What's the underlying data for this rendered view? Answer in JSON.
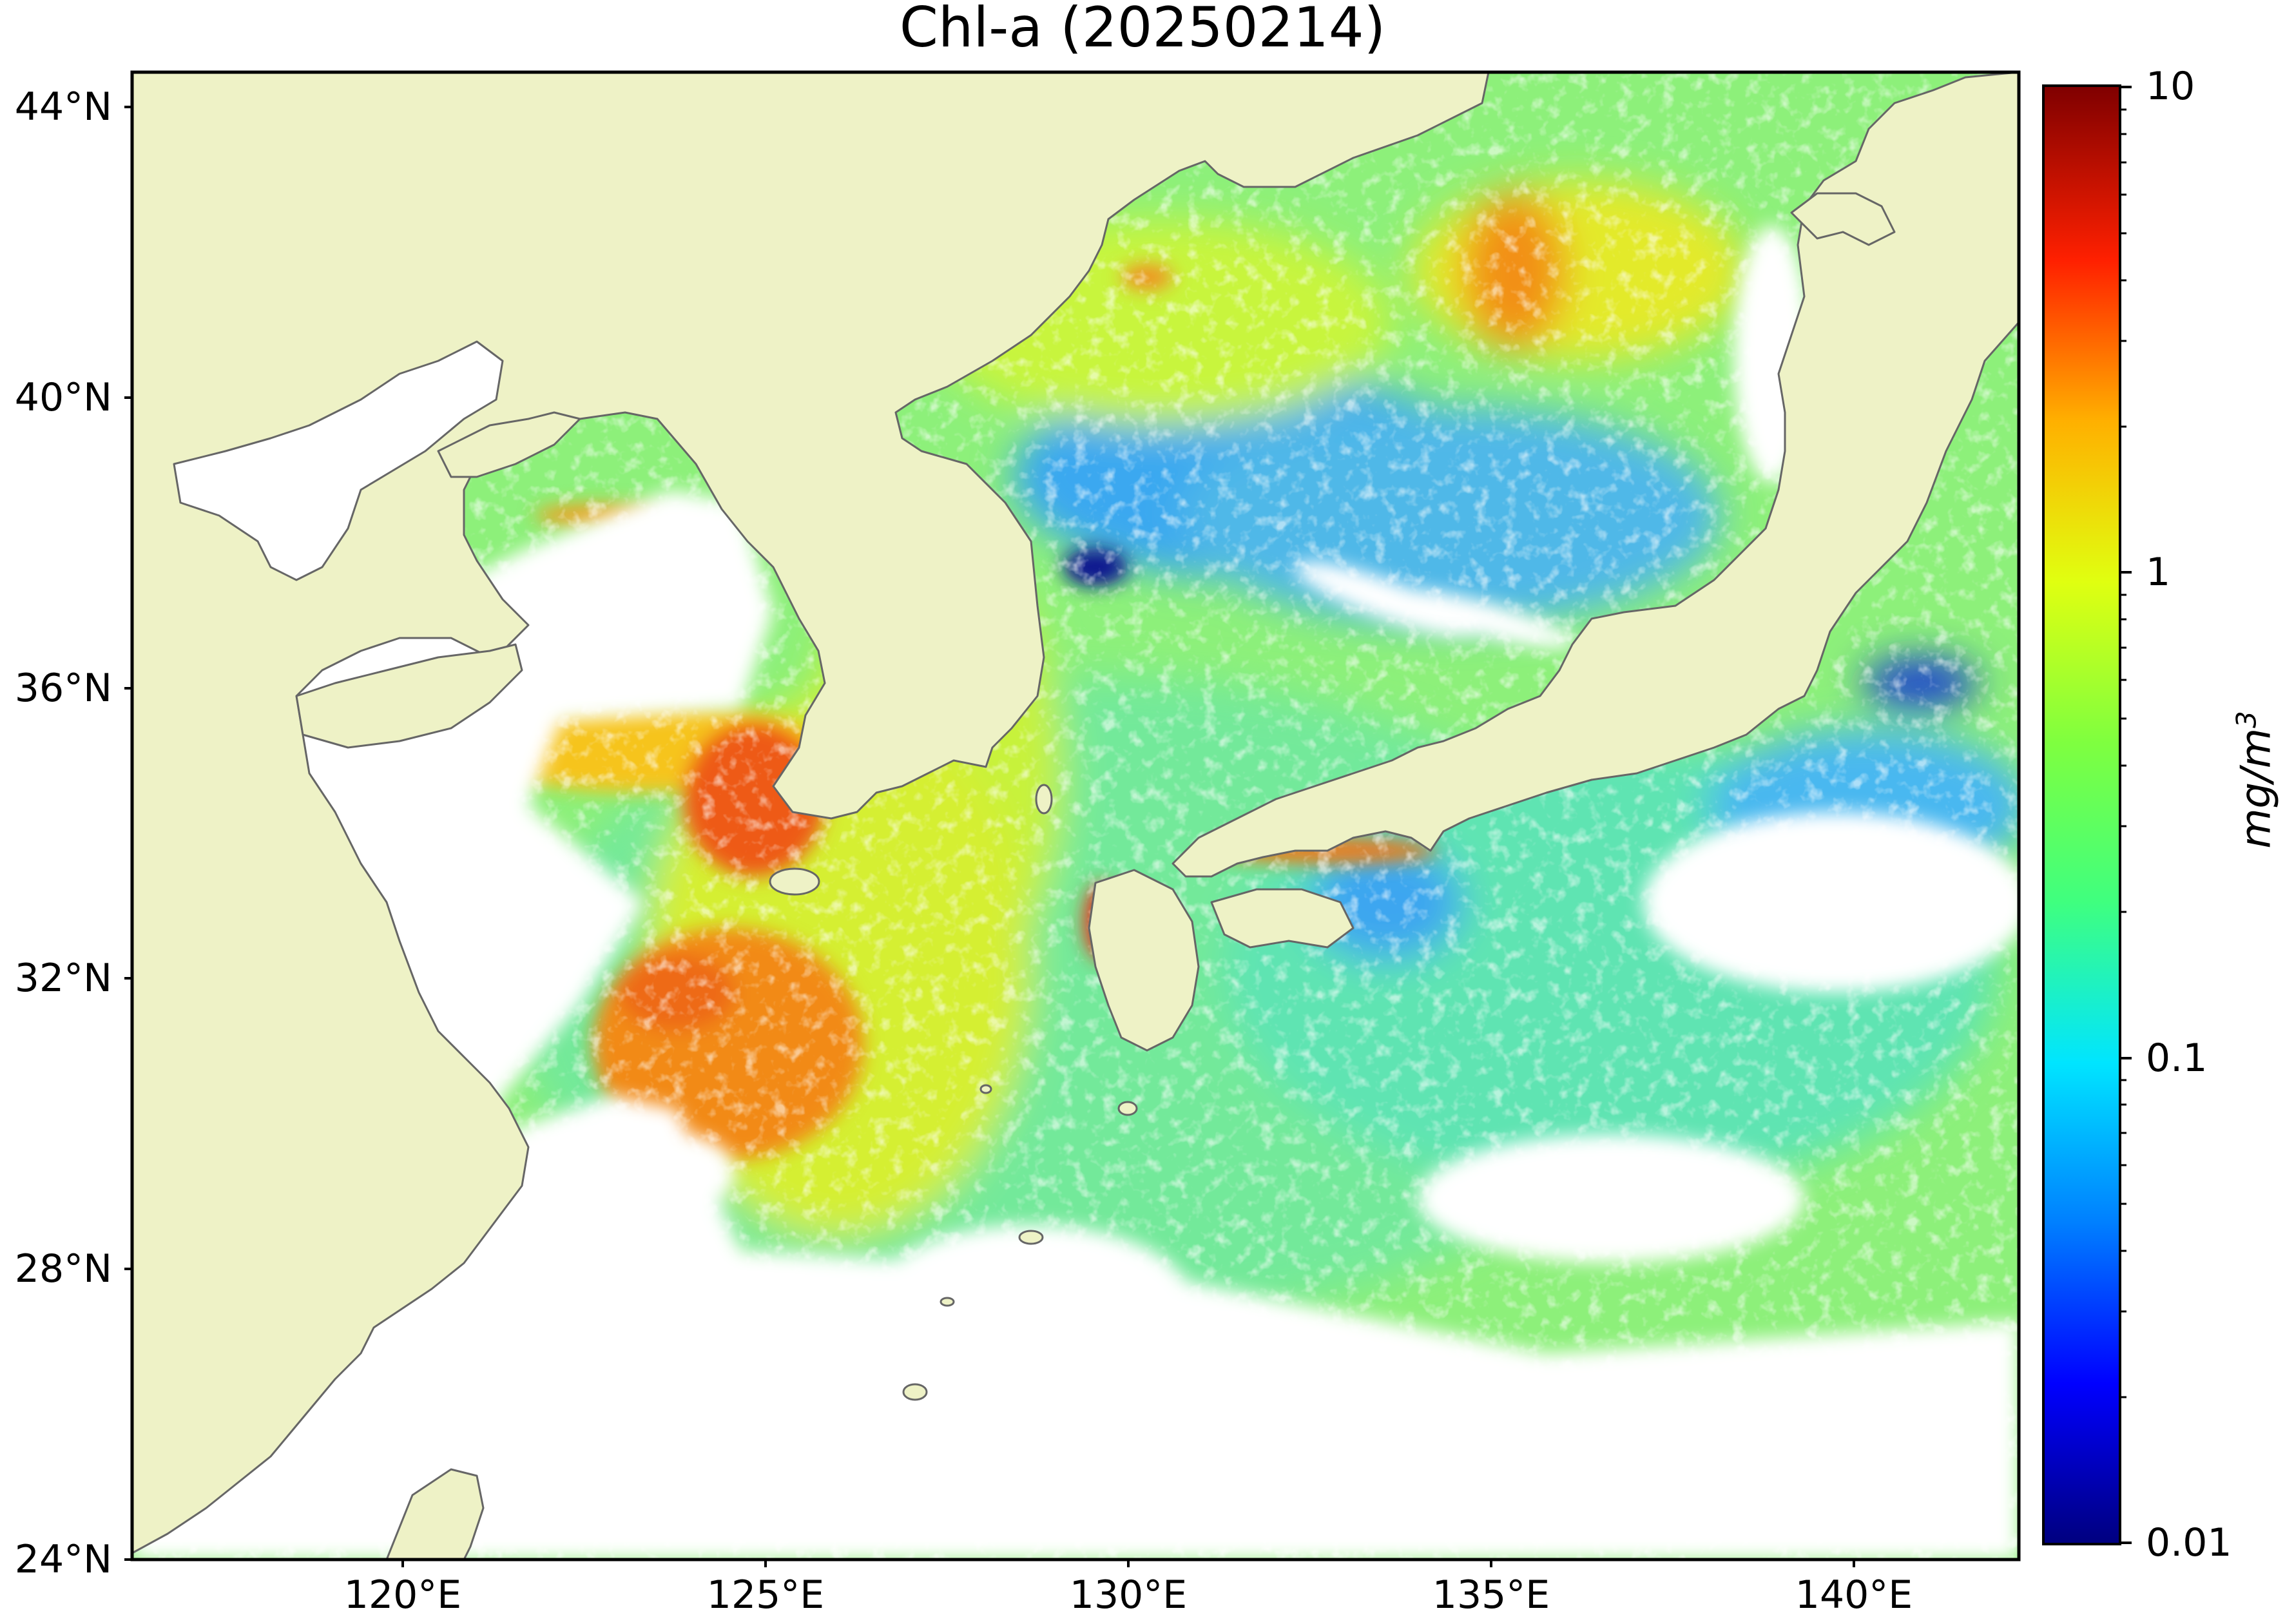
{
  "title": "Chl-a (20250214)",
  "colors": {
    "land": "#eef2c6",
    "coastline": "#666666",
    "no_data": "#ffffff",
    "colorbar_stops": [
      "#00007f",
      "#0000ff",
      "#007fff",
      "#00e5ff",
      "#3fff7f",
      "#b2ff3f",
      "#ffe500",
      "#ff8a00",
      "#ff2000",
      "#7f0000"
    ]
  },
  "latitude_labels": [
    "44°N",
    "40°N",
    "36°N",
    "32°N",
    "28°N",
    "24°N"
  ],
  "longitude_labels": [
    "120°E",
    "125°E",
    "130°E",
    "135°E",
    "140°E"
  ],
  "colorbar": {
    "scale": "log",
    "ticks": [
      "10",
      "1",
      "0.1",
      "0.01"
    ],
    "range": [
      0.01,
      10
    ],
    "unit_base": "mg/m",
    "unit_exp": "3"
  }
}
